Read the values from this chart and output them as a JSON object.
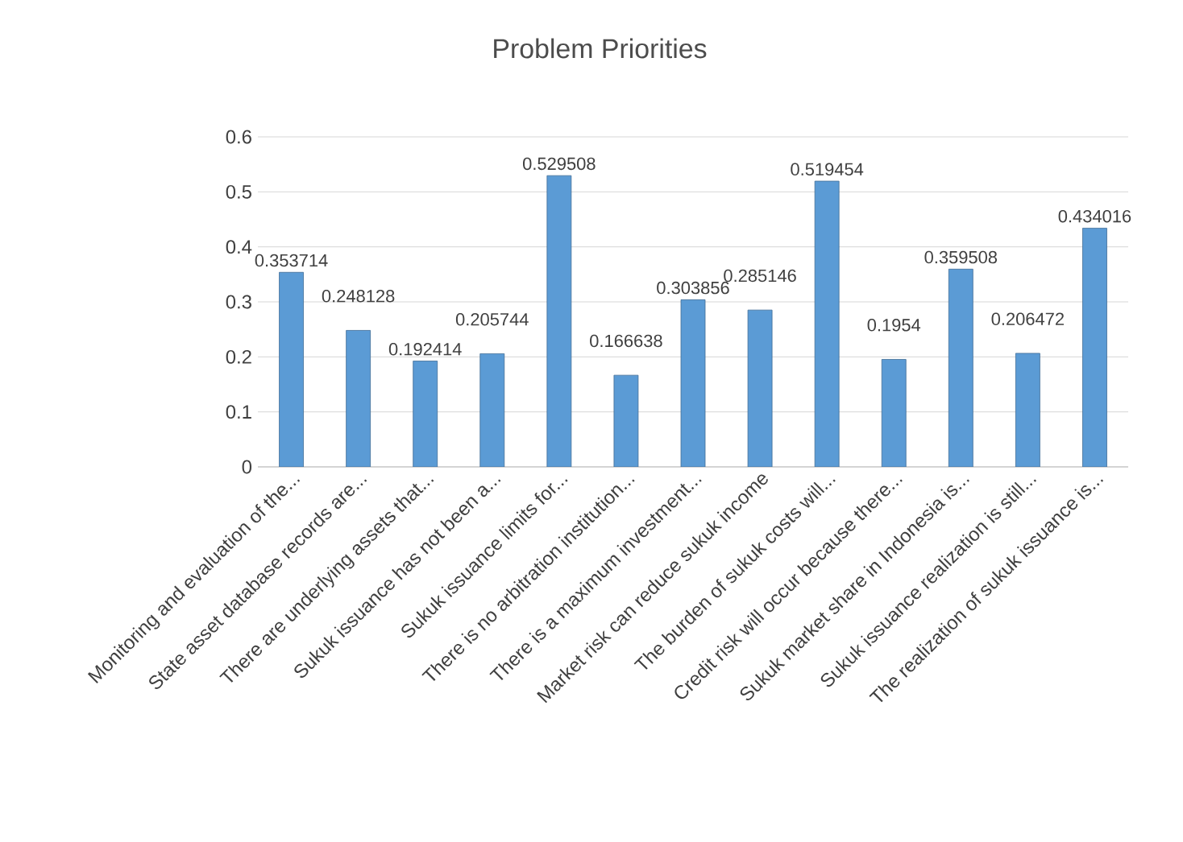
{
  "chart_data": {
    "type": "bar",
    "title": "Problem Priorities",
    "categories": [
      "Monitoring and evaluation of the...",
      "State asset database records are...",
      "There are underlying assets that...",
      "Sukuk issuance has not been a...",
      "Sukuk issuance limits for...",
      "There is no arbitration institution...",
      "There is a maximum investment...",
      "Market risk can reduce sukuk income",
      "The burden of sukuk costs will...",
      "Credit risk will occur because there...",
      "Sukuk market share in Indonesia is...",
      "Sukuk issuance realization is still...",
      "The realization of sukuk issuance is..."
    ],
    "values": [
      0.353714,
      0.248128,
      0.192414,
      0.205744,
      0.529508,
      0.166638,
      0.303856,
      0.285146,
      0.519454,
      0.1954,
      0.359508,
      0.206472,
      0.434016
    ],
    "color": "#5b9bd5",
    "ylim": [
      0,
      0.6
    ],
    "yticks": [
      0,
      0.1,
      0.2,
      0.3,
      0.4,
      0.5,
      0.6
    ],
    "grid": "y",
    "data_labels": true
  }
}
